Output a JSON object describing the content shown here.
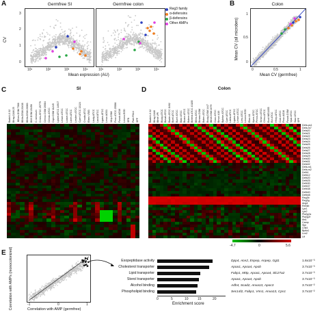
{
  "panels": {
    "A": {
      "letter": "A",
      "title_left": "Germfree SI",
      "title_right": "Germfree colon",
      "ylabel": "CV",
      "xlabel": "Mean expression (AU)",
      "yticks": [
        "0",
        "1",
        "2",
        "3"
      ],
      "xticks_left": [
        "10¹",
        "10²",
        "10³",
        "10⁴"
      ],
      "xticks_right": [
        "10¹",
        "10²",
        "10³",
        "10⁴"
      ]
    },
    "B": {
      "letter": "B",
      "title": "Colon",
      "ylabel": "Mean CV (all microbes)",
      "xlabel": "Mean CV (germfree)",
      "yticks": [
        "0",
        "0.5",
        "1"
      ],
      "xticks": [
        "0",
        "0.5",
        "1"
      ]
    },
    "C": {
      "letter": "C",
      "title": "SI",
      "gf_label": "GF",
      "spf_label": "SPF"
    },
    "D": {
      "letter": "D",
      "title": "Colon",
      "gf_label": "GF",
      "spf_label": "SPF"
    },
    "E": {
      "letter": "E",
      "ylabel": "Correlation with AMPs (monocolonized)",
      "xlabel": "Correlation with AMP (germfree)",
      "ticks": [
        "-1",
        "0",
        "1"
      ],
      "xaxis_title": "Enrichment score",
      "xaxis_ticks": [
        "0",
        "5",
        "10",
        "15",
        "20"
      ]
    }
  },
  "legend": [
    {
      "label": "Reg3 family",
      "color": "#2b3fbf"
    },
    {
      "label": "α-defensins",
      "color": "#f07d1e"
    },
    {
      "label": "β-defensins",
      "color": "#28a745"
    },
    {
      "label": "Other AMPs",
      "color": "#e040e0"
    }
  ],
  "colorbar": {
    "min": "-4.7",
    "mid": "0",
    "max": "5.6"
  },
  "si_columns": [
    "Badct.L3.32",
    "Bfrag.CAM 25",
    ".BBres.DSM 7066",
    "BBifa.DSM 20438",
    "BBifa.DSM 20083",
    "Bfilif.DSM 20456",
    "C.ramosum",
    "Cmes.ATCC 25775",
    "Cinnoc.DSM 20084",
    "Cinnac.ATCC",
    "Cspir.DSM 11245",
    "Lplant.ATCC 14917",
    "Lrham.ATCC",
    "Lcasei.ATCC",
    "Lbrev.ATCC",
    "Lreuteri.ATCC",
    "Cperf.ATCC 13124",
    "Cnoda.ATCC",
    "Efaec.V583",
    "Lbulg.ATCC",
    "Lacid.ATCC",
    "Lgass.ATCC",
    "Lmuc.AO31",
    "Vtrip.DSM",
    "Fnuc.ATCC 25586",
    "Fusob.AO16",
    "Lmono.EGD",
    "SFB",
    "Paer.PA14",
    "SPF"
  ],
  "colon_columns": [
    "Badct.L3.32",
    "Bfrag.CAM",
    "Bthet.VPI",
    "Bvulg.ATCC",
    "Bovat.ATCC",
    "Bacte.ATCC 8492",
    "Bcell.ATCC",
    "Bunif.ATCC",
    "Bdor.ATCC",
    "Bcacc.ATCC",
    "Bstere.ATCC",
    "Bintest.ATCC 43185",
    "Bfinb.ATCC",
    "Bmass.DSM",
    "Bsten.ATCC",
    "Bvulg.DSM 1447",
    "Bthet.DSM 2079",
    "Ccoc.ATCC",
    "Bmuci.A16",
    "Bplebe.ATCC",
    "Cper.ATCC",
    "Ldela.ATCC",
    "Lgass.ATCC",
    "Lrham.ATCC",
    "Lreu.ATCC",
    "Lmono.EGD",
    "Ebor.A1",
    "Kpne.ATCC",
    "Pmira.ATCC",
    "Smarc.ATCC",
    "Cfreu.ATCC",
    "Ecoli.MG1655",
    "Ecl.ATCC",
    "Hhep.ATCC",
    "Ccol.ATCC",
    "Fnuc.AO16",
    "Fusob.DSM",
    "Vpar.ATCC",
    "Saur.ATCC",
    "SPF"
  ],
  "colon_rows": [
    "Defa-ps1",
    "Defa-rs7",
    "Defa20",
    "Defa21",
    "Defa22",
    "Defa23",
    "Defa24",
    "Defa25",
    "Defa26",
    "Defa27",
    "Defa28",
    "Defa29",
    "Defa30",
    "Defa31",
    "Defa32",
    "Defa-rs1",
    "Defa-rs2",
    "Defb1",
    "Defb12",
    "Defb20",
    "Defb25",
    "Defb30",
    "Defb37",
    "Defb38",
    "Defb40",
    "Defb48",
    "Reg3b",
    "Reg3g",
    "Ang4",
    "Retnlb",
    "Lyz1",
    "Lyz2",
    "Pla2g2a",
    "Pla2g2f",
    "Itln1",
    "Camp",
    "Slpi",
    "Chil4",
    "Bpifa1",
    "Lcn2",
    "Ltf"
  ],
  "enrichment": [
    {
      "term": "Exopeptidase activity",
      "score": 16.2,
      "genes": "Dpp4, Ace2, Enpep, Anpep, Ggt1",
      "p": "1.6x10⁻³"
    },
    {
      "term": "Cholesterol transporter",
      "score": 15.1,
      "genes": "Apoa1, Apoa4, Apob",
      "p": "3.7x10⁻³"
    },
    {
      "term": "Lipid transporter",
      "score": 12.6,
      "genes": "Fabp1, Mttp, Apoa1, Apoa4, Slc27a2",
      "p": "3.7x10⁻³"
    },
    {
      "term": "Sterol transporter",
      "score": 12.2,
      "genes": "Apoa1, Apoa4, Apob",
      "p": "3.7x10⁻³"
    },
    {
      "term": "Alcohol binding",
      "score": 11.8,
      "genes": "Adh4, Scad2, Anxa13, Apoc3",
      "p": "3.7x10⁻²"
    },
    {
      "term": "Phospholipid binding",
      "score": 11.3,
      "genes": "Sec14l2, Fabp1, Vnn1, Anxa13, Cps1",
      "p": "3.7x10⁻²"
    }
  ]
}
